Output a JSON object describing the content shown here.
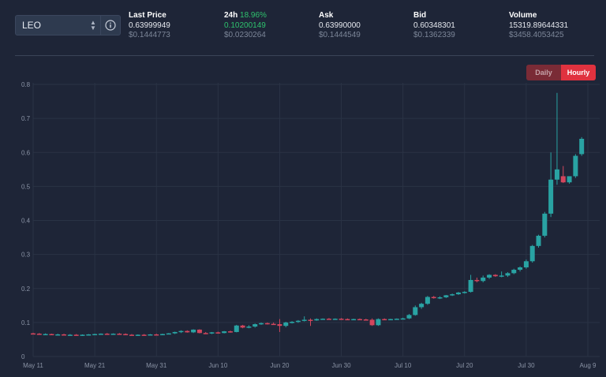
{
  "pair": {
    "selected": "LEO"
  },
  "icons": {
    "select_chevron": "chevron-updown-icon",
    "info": "info-icon"
  },
  "stats": {
    "last_price": {
      "label": "Last Price",
      "value": "0.63999949",
      "secondary": "$0.1444773"
    },
    "change_24h": {
      "label": "24h",
      "percent": "18.96%",
      "value": "0.10200149",
      "secondary": "$0.0230264"
    },
    "ask": {
      "label": "Ask",
      "value": "0.63990000",
      "secondary": "$0.1444549"
    },
    "bid": {
      "label": "Bid",
      "value": "0.60348301",
      "secondary": "$0.1362339"
    },
    "volume": {
      "label": "Volume",
      "value": "15319.89644331",
      "secondary": "$3458.4053425"
    }
  },
  "interval_toggle": {
    "daily": "Daily",
    "hourly": "Hourly",
    "active": "Hourly"
  },
  "colors": {
    "up": "#29a3a3",
    "down": "#d2465d",
    "grid": "#2a3345",
    "axis_text": "#8a93a5",
    "accent_red": "#e0323f",
    "positive": "#2ec26d"
  },
  "chart_data": {
    "type": "candlestick",
    "title": "",
    "xlabel": "",
    "ylabel": "",
    "ylim": [
      0,
      0.8
    ],
    "yticks": [
      "0",
      "0.1",
      "0.2",
      "0.3",
      "0.4",
      "0.5",
      "0.6",
      "0.7",
      "0.8"
    ],
    "xticks": [
      "May 11",
      "May 21",
      "May 31",
      "Jun 10",
      "Jun 20",
      "Jun 30",
      "Jul 10",
      "Jul 20",
      "Jul 30",
      "Aug 9"
    ],
    "x_range": [
      "May 11",
      "Aug 9"
    ],
    "grid": true,
    "candles": [
      {
        "date": "May 11",
        "open": 0.068,
        "high": 0.07,
        "low": 0.066,
        "close": 0.067
      },
      {
        "date": "May 12",
        "open": 0.067,
        "high": 0.069,
        "low": 0.065,
        "close": 0.066
      },
      {
        "date": "May 13",
        "open": 0.066,
        "high": 0.068,
        "low": 0.064,
        "close": 0.066
      },
      {
        "date": "May 14",
        "open": 0.066,
        "high": 0.067,
        "low": 0.064,
        "close": 0.065
      },
      {
        "date": "May 15",
        "open": 0.065,
        "high": 0.067,
        "low": 0.063,
        "close": 0.065
      },
      {
        "date": "May 16",
        "open": 0.065,
        "high": 0.067,
        "low": 0.063,
        "close": 0.064
      },
      {
        "date": "May 17",
        "open": 0.064,
        "high": 0.066,
        "low": 0.062,
        "close": 0.064
      },
      {
        "date": "May 18",
        "open": 0.064,
        "high": 0.066,
        "low": 0.062,
        "close": 0.063
      },
      {
        "date": "May 19",
        "open": 0.063,
        "high": 0.065,
        "low": 0.061,
        "close": 0.064
      },
      {
        "date": "May 20",
        "open": 0.064,
        "high": 0.066,
        "low": 0.062,
        "close": 0.065
      },
      {
        "date": "May 21",
        "open": 0.065,
        "high": 0.067,
        "low": 0.063,
        "close": 0.066
      },
      {
        "date": "May 22",
        "open": 0.066,
        "high": 0.068,
        "low": 0.064,
        "close": 0.067
      },
      {
        "date": "May 23",
        "open": 0.067,
        "high": 0.069,
        "low": 0.065,
        "close": 0.066
      },
      {
        "date": "May 24",
        "open": 0.066,
        "high": 0.068,
        "low": 0.064,
        "close": 0.067
      },
      {
        "date": "May 25",
        "open": 0.067,
        "high": 0.069,
        "low": 0.065,
        "close": 0.066
      },
      {
        "date": "May 26",
        "open": 0.066,
        "high": 0.068,
        "low": 0.063,
        "close": 0.064
      },
      {
        "date": "May 27",
        "open": 0.064,
        "high": 0.066,
        "low": 0.062,
        "close": 0.063
      },
      {
        "date": "May 28",
        "open": 0.063,
        "high": 0.065,
        "low": 0.061,
        "close": 0.064
      },
      {
        "date": "May 29",
        "open": 0.064,
        "high": 0.066,
        "low": 0.062,
        "close": 0.063
      },
      {
        "date": "May 30",
        "open": 0.063,
        "high": 0.066,
        "low": 0.062,
        "close": 0.065
      },
      {
        "date": "May 31",
        "open": 0.065,
        "high": 0.067,
        "low": 0.063,
        "close": 0.064
      },
      {
        "date": "Jun 1",
        "open": 0.064,
        "high": 0.067,
        "low": 0.063,
        "close": 0.066
      },
      {
        "date": "Jun 2",
        "open": 0.066,
        "high": 0.069,
        "low": 0.065,
        "close": 0.068
      },
      {
        "date": "Jun 3",
        "open": 0.068,
        "high": 0.073,
        "low": 0.066,
        "close": 0.072
      },
      {
        "date": "Jun 4",
        "open": 0.072,
        "high": 0.077,
        "low": 0.069,
        "close": 0.075
      },
      {
        "date": "Jun 5",
        "open": 0.075,
        "high": 0.077,
        "low": 0.07,
        "close": 0.071
      },
      {
        "date": "Jun 6",
        "open": 0.071,
        "high": 0.08,
        "low": 0.069,
        "close": 0.079
      },
      {
        "date": "Jun 7",
        "open": 0.079,
        "high": 0.08,
        "low": 0.068,
        "close": 0.069
      },
      {
        "date": "Jun 8",
        "open": 0.069,
        "high": 0.072,
        "low": 0.066,
        "close": 0.068
      },
      {
        "date": "Jun 9",
        "open": 0.068,
        "high": 0.072,
        "low": 0.066,
        "close": 0.071
      },
      {
        "date": "Jun 10",
        "open": 0.071,
        "high": 0.073,
        "low": 0.067,
        "close": 0.069
      },
      {
        "date": "Jun 11",
        "open": 0.069,
        "high": 0.075,
        "low": 0.068,
        "close": 0.074
      },
      {
        "date": "Jun 12",
        "open": 0.074,
        "high": 0.076,
        "low": 0.07,
        "close": 0.072
      },
      {
        "date": "Jun 13",
        "open": 0.072,
        "high": 0.093,
        "low": 0.071,
        "close": 0.091
      },
      {
        "date": "Jun 14",
        "open": 0.091,
        "high": 0.093,
        "low": 0.083,
        "close": 0.085
      },
      {
        "date": "Jun 15",
        "open": 0.085,
        "high": 0.092,
        "low": 0.083,
        "close": 0.088
      },
      {
        "date": "Jun 16",
        "open": 0.088,
        "high": 0.097,
        "low": 0.085,
        "close": 0.095
      },
      {
        "date": "Jun 17",
        "open": 0.095,
        "high": 0.1,
        "low": 0.093,
        "close": 0.098
      },
      {
        "date": "Jun 18",
        "open": 0.098,
        "high": 0.1,
        "low": 0.094,
        "close": 0.096
      },
      {
        "date": "Jun 19",
        "open": 0.096,
        "high": 0.1,
        "low": 0.093,
        "close": 0.095
      },
      {
        "date": "Jun 20",
        "open": 0.095,
        "high": 0.11,
        "low": 0.072,
        "close": 0.09
      },
      {
        "date": "Jun 21",
        "open": 0.09,
        "high": 0.102,
        "low": 0.086,
        "close": 0.1
      },
      {
        "date": "Jun 22",
        "open": 0.1,
        "high": 0.104,
        "low": 0.097,
        "close": 0.102
      },
      {
        "date": "Jun 23",
        "open": 0.102,
        "high": 0.107,
        "low": 0.099,
        "close": 0.105
      },
      {
        "date": "Jun 24",
        "open": 0.105,
        "high": 0.118,
        "low": 0.103,
        "close": 0.108
      },
      {
        "date": "Jun 25",
        "open": 0.108,
        "high": 0.112,
        "low": 0.09,
        "close": 0.106
      },
      {
        "date": "Jun 26",
        "open": 0.106,
        "high": 0.112,
        "low": 0.105,
        "close": 0.11
      },
      {
        "date": "Jun 27",
        "open": 0.11,
        "high": 0.112,
        "low": 0.108,
        "close": 0.111
      },
      {
        "date": "Jun 28",
        "open": 0.111,
        "high": 0.113,
        "low": 0.109,
        "close": 0.11
      },
      {
        "date": "Jun 29",
        "open": 0.11,
        "high": 0.112,
        "low": 0.108,
        "close": 0.111
      },
      {
        "date": "Jun 30",
        "open": 0.111,
        "high": 0.113,
        "low": 0.109,
        "close": 0.11
      },
      {
        "date": "Jul 1",
        "open": 0.11,
        "high": 0.112,
        "low": 0.108,
        "close": 0.109
      },
      {
        "date": "Jul 2",
        "open": 0.109,
        "high": 0.111,
        "low": 0.107,
        "close": 0.11
      },
      {
        "date": "Jul 3",
        "open": 0.11,
        "high": 0.112,
        "low": 0.108,
        "close": 0.109
      },
      {
        "date": "Jul 4",
        "open": 0.109,
        "high": 0.111,
        "low": 0.107,
        "close": 0.108
      },
      {
        "date": "Jul 5",
        "open": 0.108,
        "high": 0.112,
        "low": 0.09,
        "close": 0.092
      },
      {
        "date": "Jul 6",
        "open": 0.092,
        "high": 0.112,
        "low": 0.09,
        "close": 0.11
      },
      {
        "date": "Jul 7",
        "open": 0.11,
        "high": 0.112,
        "low": 0.107,
        "close": 0.109
      },
      {
        "date": "Jul 8",
        "open": 0.109,
        "high": 0.111,
        "low": 0.107,
        "close": 0.11
      },
      {
        "date": "Jul 9",
        "open": 0.11,
        "high": 0.112,
        "low": 0.108,
        "close": 0.111
      },
      {
        "date": "Jul 10",
        "open": 0.111,
        "high": 0.114,
        "low": 0.109,
        "close": 0.112
      },
      {
        "date": "Jul 11",
        "open": 0.112,
        "high": 0.125,
        "low": 0.11,
        "close": 0.122
      },
      {
        "date": "Jul 12",
        "open": 0.122,
        "high": 0.15,
        "low": 0.12,
        "close": 0.145
      },
      {
        "date": "Jul 13",
        "open": 0.145,
        "high": 0.158,
        "low": 0.14,
        "close": 0.155
      },
      {
        "date": "Jul 14",
        "open": 0.155,
        "high": 0.178,
        "low": 0.152,
        "close": 0.175
      },
      {
        "date": "Jul 15",
        "open": 0.175,
        "high": 0.178,
        "low": 0.17,
        "close": 0.172
      },
      {
        "date": "Jul 16",
        "open": 0.172,
        "high": 0.177,
        "low": 0.169,
        "close": 0.174
      },
      {
        "date": "Jul 17",
        "open": 0.174,
        "high": 0.181,
        "low": 0.172,
        "close": 0.18
      },
      {
        "date": "Jul 18",
        "open": 0.18,
        "high": 0.185,
        "low": 0.178,
        "close": 0.183
      },
      {
        "date": "Jul 19",
        "open": 0.183,
        "high": 0.19,
        "low": 0.181,
        "close": 0.188
      },
      {
        "date": "Jul 20",
        "open": 0.188,
        "high": 0.192,
        "low": 0.185,
        "close": 0.19
      },
      {
        "date": "Jul 21",
        "open": 0.19,
        "high": 0.24,
        "low": 0.188,
        "close": 0.225
      },
      {
        "date": "Jul 22",
        "open": 0.225,
        "high": 0.232,
        "low": 0.218,
        "close": 0.222
      },
      {
        "date": "Jul 23",
        "open": 0.222,
        "high": 0.238,
        "low": 0.218,
        "close": 0.232
      },
      {
        "date": "Jul 24",
        "open": 0.232,
        "high": 0.242,
        "low": 0.228,
        "close": 0.24
      },
      {
        "date": "Jul 25",
        "open": 0.24,
        "high": 0.242,
        "low": 0.234,
        "close": 0.236
      },
      {
        "date": "Jul 26",
        "open": 0.236,
        "high": 0.25,
        "low": 0.233,
        "close": 0.238
      },
      {
        "date": "Jul 27",
        "open": 0.238,
        "high": 0.248,
        "low": 0.234,
        "close": 0.245
      },
      {
        "date": "Jul 28",
        "open": 0.245,
        "high": 0.258,
        "low": 0.242,
        "close": 0.255
      },
      {
        "date": "Jul 29",
        "open": 0.255,
        "high": 0.265,
        "low": 0.25,
        "close": 0.262
      },
      {
        "date": "Jul 30",
        "open": 0.262,
        "high": 0.285,
        "low": 0.258,
        "close": 0.28
      },
      {
        "date": "Jul 31",
        "open": 0.28,
        "high": 0.328,
        "low": 0.276,
        "close": 0.325
      },
      {
        "date": "Aug 1",
        "open": 0.325,
        "high": 0.358,
        "low": 0.32,
        "close": 0.355
      },
      {
        "date": "Aug 2",
        "open": 0.355,
        "high": 0.425,
        "low": 0.35,
        "close": 0.42
      },
      {
        "date": "Aug 3",
        "open": 0.42,
        "high": 0.6,
        "low": 0.41,
        "close": 0.52
      },
      {
        "date": "Aug 4",
        "open": 0.52,
        "high": 0.775,
        "low": 0.505,
        "close": 0.55
      },
      {
        "date": "Aug 5",
        "open": 0.53,
        "high": 0.56,
        "low": 0.51,
        "close": 0.512
      },
      {
        "date": "Aug 6",
        "open": 0.512,
        "high": 0.525,
        "low": 0.508,
        "close": 0.53
      },
      {
        "date": "Aug 7",
        "open": 0.53,
        "high": 0.595,
        "low": 0.525,
        "close": 0.59
      },
      {
        "date": "Aug 8",
        "open": 0.595,
        "high": 0.645,
        "low": 0.59,
        "close": 0.64
      }
    ]
  }
}
